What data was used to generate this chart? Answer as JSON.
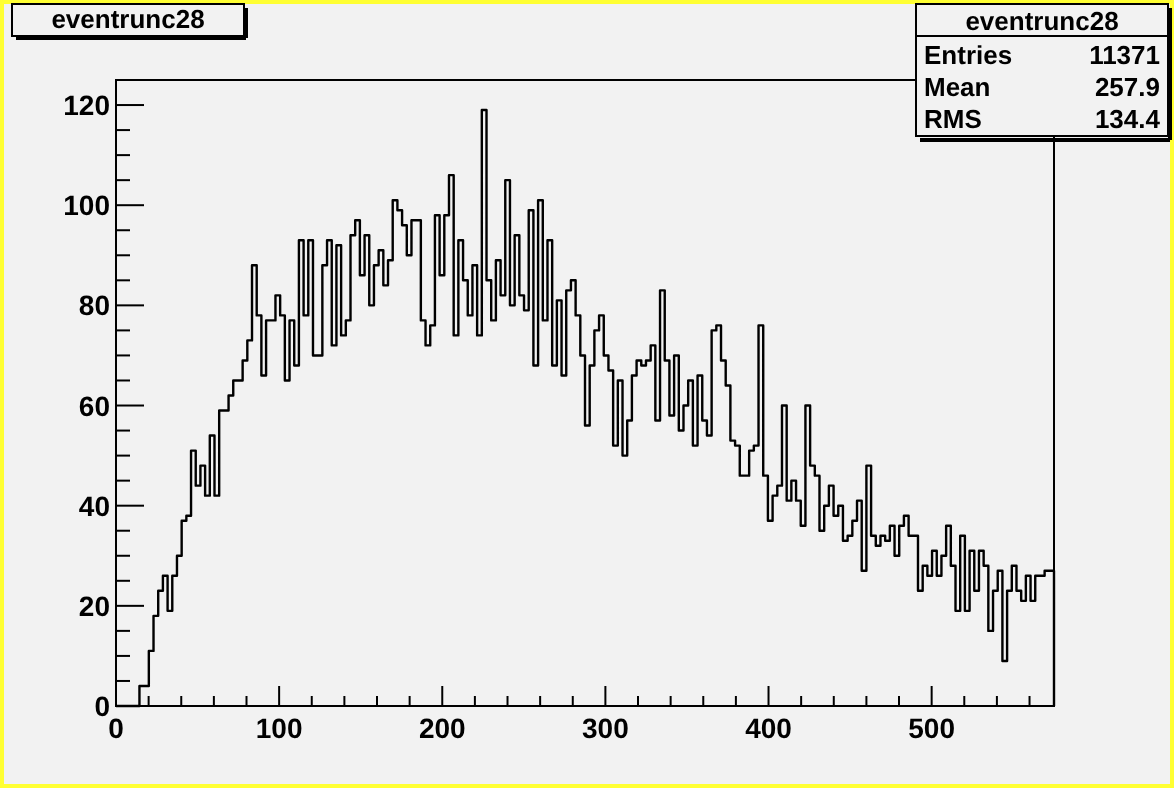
{
  "chart_data": {
    "type": "histogram",
    "title": "eventrunc28",
    "annotations": [
      "eventrunc28",
      "Entries",
      "11371",
      "Mean",
      "257.9",
      "RMS",
      "134.4"
    ],
    "color": "#000000",
    "bins": [
      0,
      2.875,
      5.75,
      8.625,
      11.5,
      14.375,
      17.25,
      20.125,
      23,
      25.875,
      28.75,
      31.625,
      34.5,
      37.375,
      40.25,
      43.125,
      46,
      48.875,
      51.75,
      54.625,
      57.5,
      60.375,
      63.25,
      66.125,
      69,
      71.875,
      74.75,
      77.625,
      80.5,
      83.375,
      86.25,
      89.125,
      92,
      94.875,
      97.75,
      100.625,
      103.5,
      106.375,
      109.25,
      112.125,
      115,
      117.875,
      120.75,
      123.625,
      126.5,
      129.375,
      132.25,
      135.125,
      138,
      140.875,
      143.75,
      146.625,
      149.5,
      152.375,
      155.25,
      158.125,
      161,
      163.875,
      166.75,
      169.625,
      172.5,
      175.375,
      178.25,
      181.125,
      184,
      186.875,
      189.75,
      192.625,
      195.5,
      198.375,
      201.25,
      204.125,
      207,
      209.875,
      212.75,
      215.625,
      218.5,
      221.375,
      224.25,
      227.125,
      230,
      232.875,
      235.75,
      238.625,
      241.5,
      244.375,
      247.25,
      250.125,
      253,
      255.875,
      258.75,
      261.625,
      264.5,
      267.375,
      270.25,
      273.125,
      276,
      278.875,
      281.75,
      284.625,
      287.5,
      290.375,
      293.25,
      296.125,
      299,
      301.875,
      304.75,
      307.625,
      310.5,
      313.375,
      316.25,
      319.125,
      322,
      324.875,
      327.75,
      330.625,
      333.5,
      336.375,
      339.25,
      342.125,
      345,
      347.875,
      350.75,
      353.625,
      356.5,
      359.375,
      362.25,
      365.125,
      368,
      370.875,
      373.75,
      376.625,
      379.5,
      382.375,
      385.25,
      388.125,
      391,
      393.875,
      396.75,
      399.625,
      402.5,
      405.375,
      408.25,
      411.125,
      414,
      416.875,
      419.75,
      422.625,
      425.5,
      428.375,
      431.25,
      434.125,
      437,
      439.875,
      442.75,
      445.625,
      448.5,
      451.375,
      454.25,
      457.125,
      460,
      462.875,
      465.75,
      468.625,
      471.5,
      474.375,
      477.25,
      480.125,
      483,
      485.875,
      488.75,
      491.625,
      494.5,
      497.375,
      500.25,
      503.125,
      506,
      508.875,
      511.75,
      514.625,
      517.5,
      520.375,
      523.25,
      526.125,
      529,
      531.875,
      534.75,
      537.625,
      540.5,
      543.375,
      546.25,
      549.125,
      552,
      554.875,
      557.75,
      560.625,
      563.5,
      566.375,
      569.25,
      572.125,
      575
    ],
    "values": [
      0,
      0,
      0,
      0,
      0,
      4,
      4,
      11,
      18,
      23,
      26,
      19,
      26,
      30,
      37,
      38,
      51,
      44,
      48,
      42,
      54,
      42,
      59,
      59,
      62,
      65,
      65,
      69,
      73,
      88,
      78,
      66,
      77,
      77,
      82,
      78,
      65,
      77,
      68,
      93,
      78,
      93,
      70,
      70,
      88,
      93,
      72,
      92,
      74,
      77,
      94,
      97,
      86,
      94,
      80,
      88,
      91,
      84,
      89,
      101,
      99,
      96,
      90,
      97,
      97,
      77,
      72,
      76,
      98,
      86,
      98,
      106,
      74,
      93,
      85,
      78,
      88,
      74,
      119,
      85,
      77,
      89,
      82,
      105,
      80,
      94,
      82,
      79,
      99,
      68,
      101,
      77,
      93,
      68,
      81,
      66,
      83,
      85,
      78,
      70,
      56,
      68,
      75,
      78,
      70,
      67,
      52,
      65,
      50,
      57,
      66,
      69,
      68,
      69,
      72,
      57,
      83,
      69,
      58,
      70,
      55,
      60,
      65,
      52,
      66,
      57,
      54,
      75,
      76,
      69,
      64,
      53,
      52,
      46,
      46,
      51,
      52,
      76,
      46,
      37,
      42,
      44,
      60,
      41,
      45,
      41,
      36,
      60,
      48,
      46,
      35,
      40,
      44,
      38,
      40,
      33,
      34,
      37,
      41,
      27,
      48,
      34,
      32,
      34,
      33,
      36,
      30,
      36,
      38,
      34,
      34,
      23,
      28,
      26,
      31,
      26,
      30,
      36,
      28,
      19,
      34,
      19,
      31,
      23,
      31,
      28,
      15,
      23,
      27,
      9,
      23,
      28,
      23,
      21,
      26,
      21,
      26,
      26,
      27,
      27
    ],
    "xlim": [
      0,
      575
    ],
    "ylim": [
      0,
      125
    ],
    "xticks": [
      0,
      {
        "value": 20,
        "label": null
      },
      {
        "value": 40,
        "label": null
      },
      {
        "value": 60,
        "label": null
      },
      {
        "value": 80,
        "label": null
      },
      100,
      {
        "value": 120,
        "label": null
      },
      {
        "value": 140,
        "label": null
      },
      {
        "value": 160,
        "label": null
      },
      {
        "value": 180,
        "label": null
      },
      200,
      {
        "value": 220,
        "label": null
      },
      {
        "value": 240,
        "label": null
      },
      {
        "value": 260,
        "label": null
      },
      {
        "value": 280,
        "label": null
      },
      300,
      {
        "value": 320,
        "label": null
      },
      {
        "value": 340,
        "label": null
      },
      {
        "value": 360,
        "label": null
      },
      {
        "value": 380,
        "label": null
      },
      400,
      {
        "value": 420,
        "label": null
      },
      {
        "value": 440,
        "label": null
      },
      {
        "value": 460,
        "label": null
      },
      {
        "value": 480,
        "label": null
      },
      500,
      {
        "value": 520,
        "label": null
      },
      {
        "value": 540,
        "label": null
      },
      {
        "value": 560,
        "label": null
      }
    ],
    "yticks": [
      0,
      {
        "value": 5,
        "label": null
      },
      {
        "value": 10,
        "label": null
      },
      {
        "value": 15,
        "label": null
      },
      20,
      {
        "value": 25,
        "label": null
      },
      {
        "value": 30,
        "label": null
      },
      {
        "value": 35,
        "label": null
      },
      40,
      {
        "value": 45,
        "label": null
      },
      {
        "value": 50,
        "label": null
      },
      {
        "value": 55,
        "label": null
      },
      60,
      {
        "value": 65,
        "label": null
      },
      {
        "value": 70,
        "label": null
      },
      {
        "value": 75,
        "label": null
      },
      80,
      {
        "value": 85,
        "label": null
      },
      {
        "value": 90,
        "label": null
      },
      {
        "value": 95,
        "label": null
      },
      100,
      {
        "value": 105,
        "label": null
      },
      {
        "value": 110,
        "label": null
      },
      {
        "value": 115,
        "label": null
      },
      120
    ],
    "grid": false
  }
}
